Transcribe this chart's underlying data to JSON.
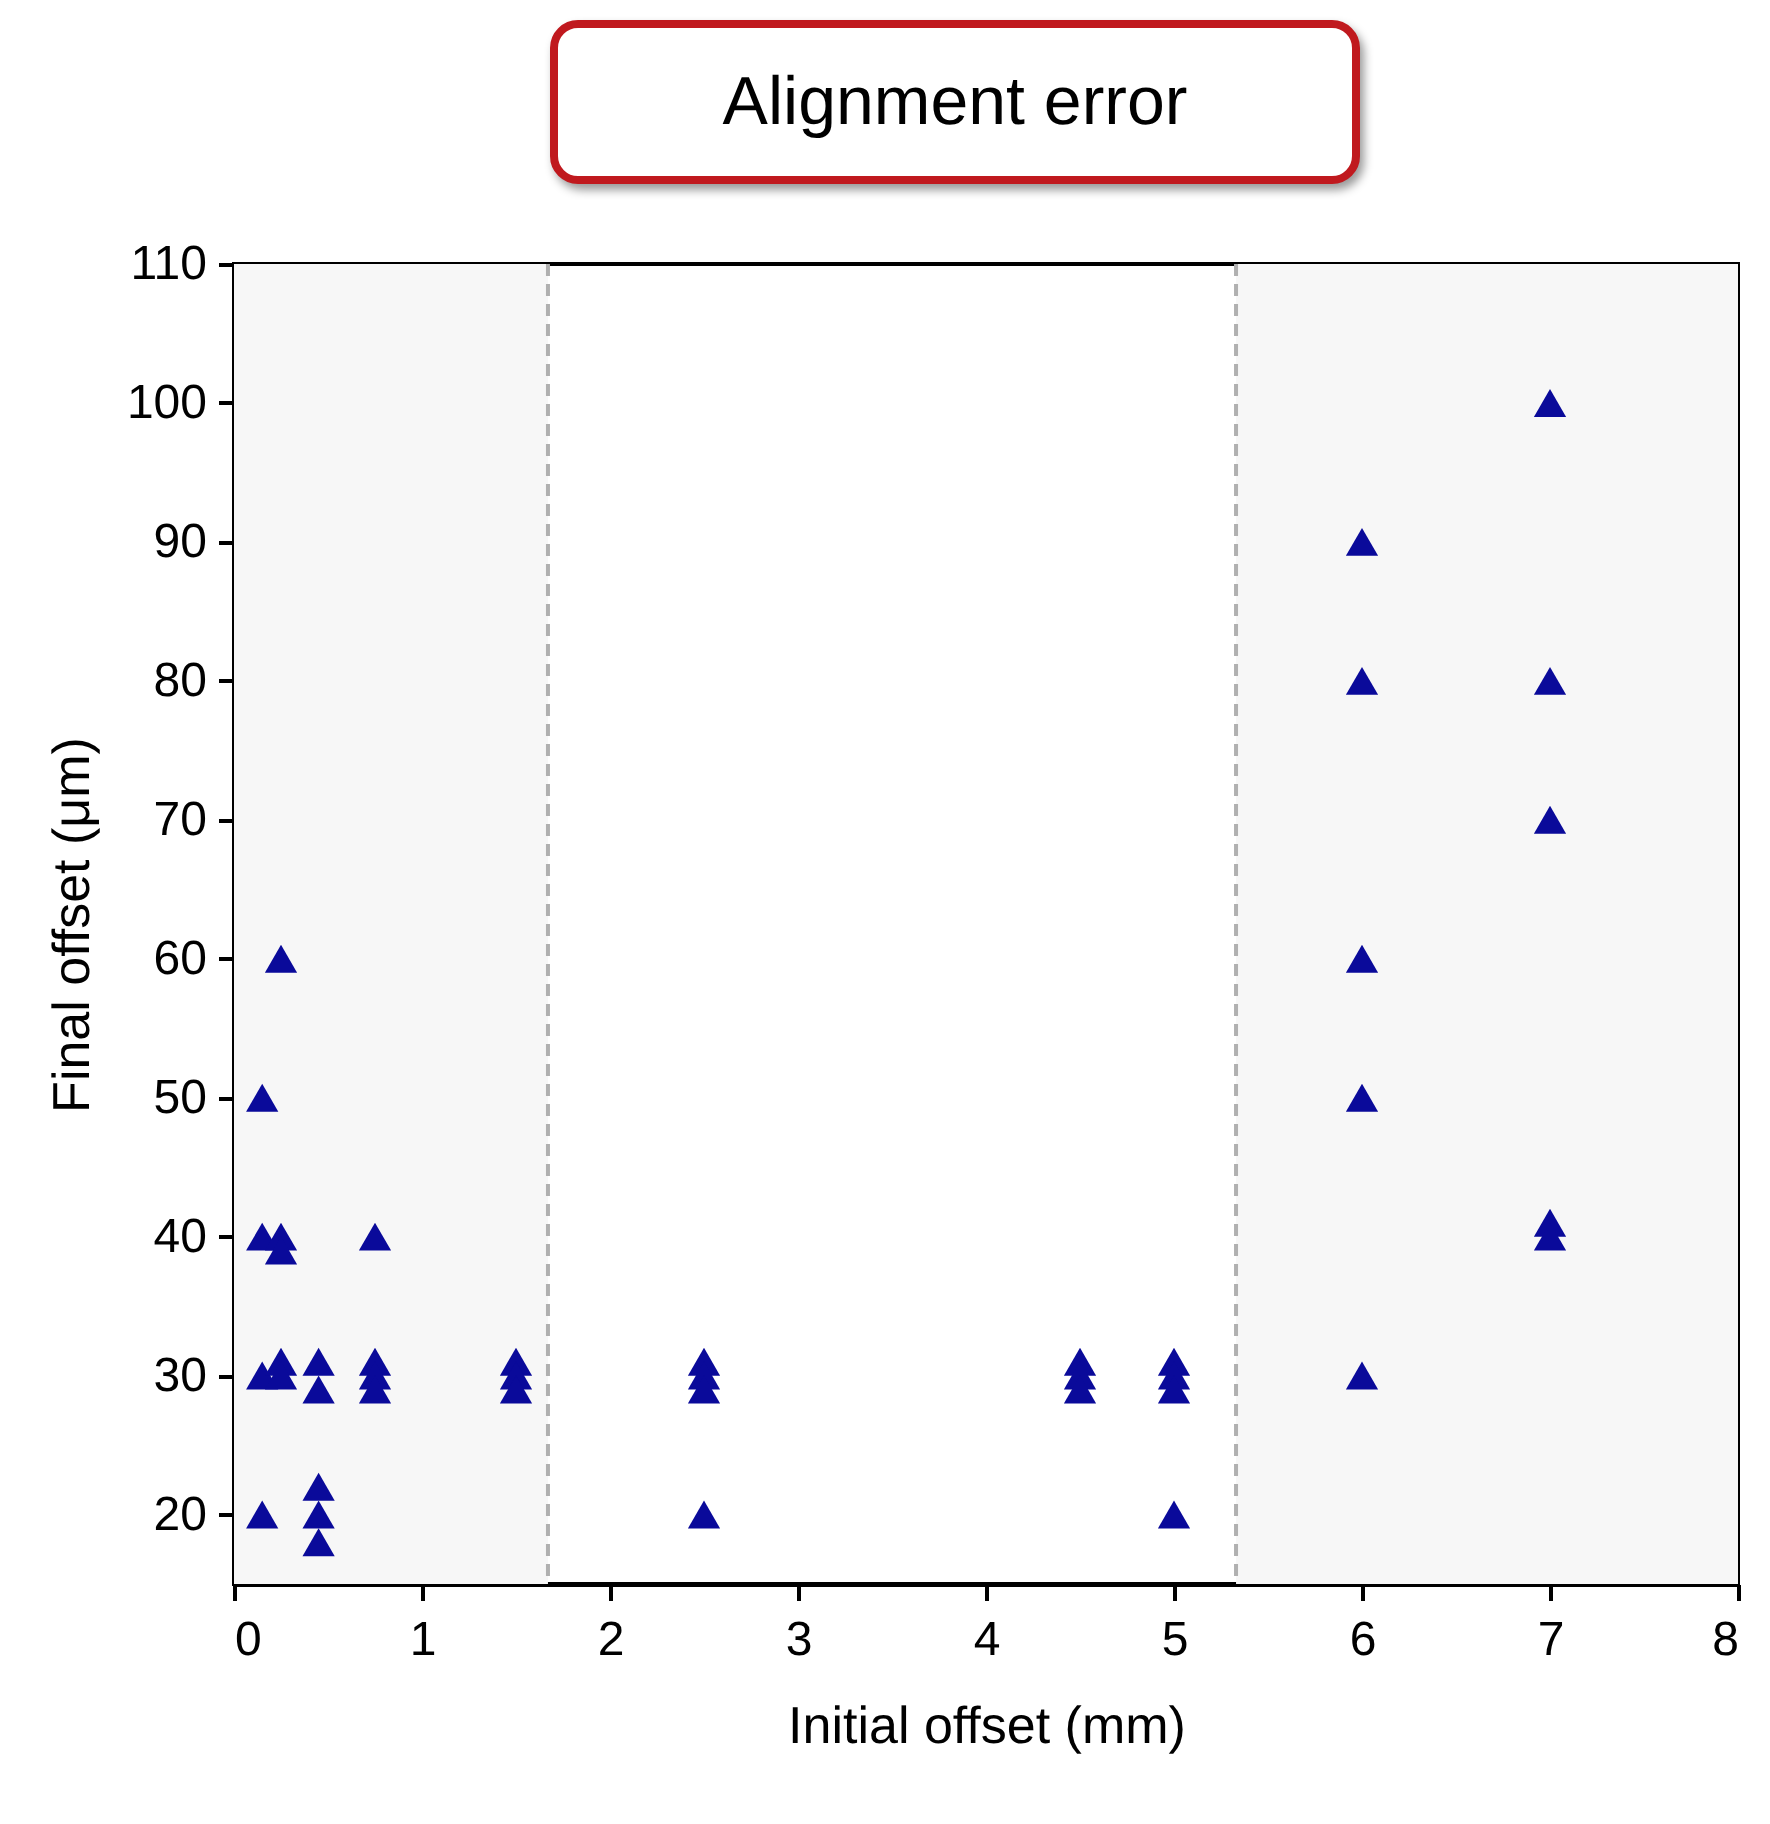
{
  "chart_data": {
    "type": "scatter",
    "title": "Alignment error",
    "xlabel": "Initial offset (mm)",
    "ylabel": "Final offset (μm)",
    "x": [
      0.15,
      0.15,
      0.15,
      0.15,
      0.25,
      0.25,
      0.25,
      0.25,
      0.25,
      0.45,
      0.45,
      0.45,
      0.45,
      0.45,
      0.75,
      0.75,
      0.75,
      0.75,
      1.5,
      1.5,
      1.5,
      2.5,
      2.5,
      2.5,
      2.5,
      4.5,
      4.5,
      4.5,
      5,
      5,
      5,
      5,
      6,
      6,
      6,
      6,
      6,
      7,
      7,
      7,
      7,
      7
    ],
    "series": [
      {
        "color": "#0a0a9a",
        "values": [
          50,
          40,
          30,
          20,
          60,
          40,
          39,
          31,
          30,
          31,
          29,
          22,
          20,
          18,
          40,
          31,
          30,
          29,
          31,
          30,
          29,
          31,
          30,
          29,
          20,
          31,
          30,
          29,
          31,
          30,
          29,
          20,
          90,
          80,
          60,
          50,
          30,
          100,
          80,
          70,
          41,
          40
        ]
      }
    ],
    "marker": "triangle",
    "xlim": [
      0,
      8
    ],
    "ylim": [
      15,
      110
    ],
    "xticks": [
      0,
      1,
      2,
      3,
      4,
      5,
      6,
      7,
      8
    ],
    "yticks": [
      20,
      30,
      40,
      50,
      60,
      70,
      80,
      90,
      100,
      110
    ],
    "grid": false,
    "bands": [
      {
        "axis": "x",
        "from": 0,
        "to": 1.67,
        "color": "#f7f7f7"
      },
      {
        "axis": "x",
        "from": 5.33,
        "to": 8,
        "color": "#f7f7f7"
      }
    ],
    "ref_lines": [
      {
        "axis": "x",
        "value": 1.67,
        "color": "#b0b0b0",
        "line_style": "dashed"
      },
      {
        "axis": "x",
        "value": 5.33,
        "color": "#b0b0b0",
        "line_style": "dashed"
      }
    ]
  }
}
